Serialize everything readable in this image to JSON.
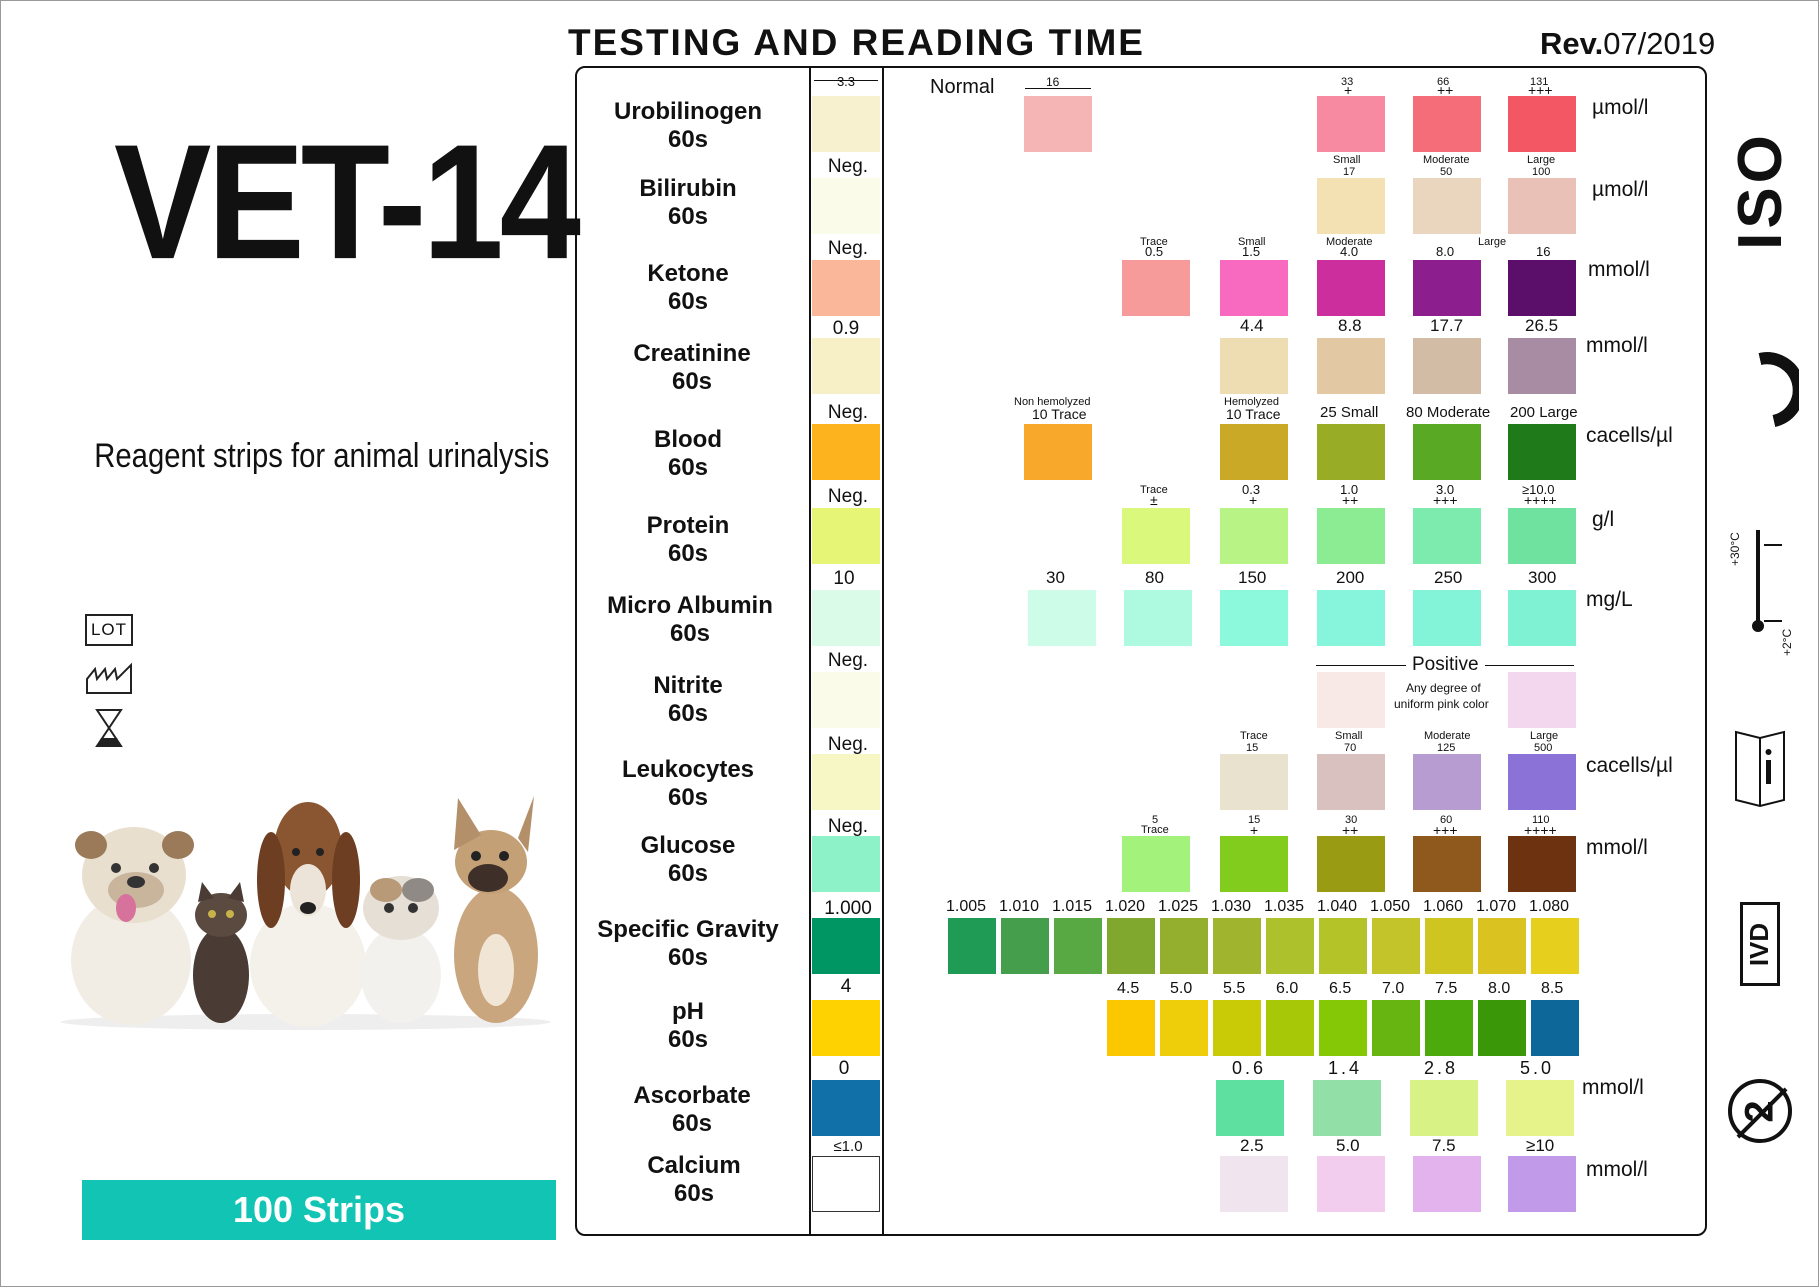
{
  "left_panel": {
    "product_name": "VET-14",
    "subtitle": "Reagent strips for animal urinalysis",
    "lot_label": "LOT",
    "banner": "100 Strips"
  },
  "header": {
    "title": "TESTING AND READING TIME",
    "rev_prefix": "Rev.",
    "rev_date": "07/2019"
  },
  "table": {
    "normal_label": "Normal",
    "rows": [
      {
        "name": "Urobilinogen",
        "time": "60s",
        "neg": "3.3",
        "unit": "µmol/l"
      },
      {
        "name": "Bilirubin",
        "time": "60s",
        "neg": "Neg.",
        "unit": "µmol/l"
      },
      {
        "name": "Ketone",
        "time": "60s",
        "neg": "Neg.",
        "unit": "mmol/l"
      },
      {
        "name": "Creatinine",
        "time": "60s",
        "neg": "0.9",
        "unit": "mmol/l"
      },
      {
        "name": "Blood",
        "time": "60s",
        "neg": "Neg.",
        "unit": "cacells/µl"
      },
      {
        "name": "Protein",
        "time": "60s",
        "neg": "Neg.",
        "unit": "g/l"
      },
      {
        "name": "Micro Albumin",
        "time": "60s",
        "neg": "10",
        "unit": "mg/L"
      },
      {
        "name": "Nitrite",
        "time": "60s",
        "neg": "Neg.",
        "unit": ""
      },
      {
        "name": "Leukocytes",
        "time": "60s",
        "neg": "Neg.",
        "unit": "cacells/µl"
      },
      {
        "name": "Glucose",
        "time": "60s",
        "neg": "Neg.",
        "unit": "mmol/l"
      },
      {
        "name": "Specific Gravity",
        "time": "60s",
        "neg": "1.000",
        "unit": ""
      },
      {
        "name": "pH",
        "time": "60s",
        "neg": "4",
        "unit": ""
      },
      {
        "name": "Ascorbate",
        "time": "60s",
        "neg": "0",
        "unit": "mmol/l"
      },
      {
        "name": "Calcium",
        "time": "60s",
        "neg": "≤1.0",
        "unit": "mmol/l"
      }
    ],
    "labels": {
      "uro_normal": "16",
      "uro_33": "33",
      "uro_66": "66",
      "uro_131": "131",
      "uro_p1": "+",
      "uro_p2": "++",
      "uro_p3": "+++",
      "bil_small": "Small",
      "bil_17": "17",
      "bil_moderate": "Moderate",
      "bil_50": "50",
      "bil_large": "Large",
      "bil_100": "100",
      "ket_trace": "Trace",
      "ket_05": "0.5",
      "ket_small": "Small",
      "ket_15": "1.5",
      "ket_moderate": "Moderate",
      "ket_40": "4.0",
      "ket_large": "Large",
      "ket_80": "8.0",
      "ket_16": "16",
      "cre_44": "4.4",
      "cre_88": "8.8",
      "cre_177": "17.7",
      "cre_265": "26.5",
      "blood_nonhemo": "Non hemolyzed",
      "blood_nonhemo_val": "10 Trace",
      "blood_hemo": "Hemolyzed",
      "blood_hemo_val": "10 Trace",
      "blood_25": "25 Small",
      "blood_80": "80 Moderate",
      "blood_200": "200 Large",
      "pro_trace": "Trace",
      "pro_pm": "±",
      "pro_03": "0.3",
      "pro_10": "1.0",
      "pro_30": "3.0",
      "pro_100": "≥10.0",
      "pro_p1": "+",
      "pro_p2": "++",
      "pro_p3": "+++",
      "pro_p4": "++++",
      "alb_30": "30",
      "alb_80": "80",
      "alb_150": "150",
      "alb_200": "200",
      "alb_250": "250",
      "alb_300": "300",
      "nit_positive": "Positive",
      "nit_desc1": "Any degree of",
      "nit_desc2": "uniform pink color",
      "leu_trace": "Trace",
      "leu_15": "15",
      "leu_small": "Small",
      "leu_70": "70",
      "leu_moderate": "Moderate",
      "leu_125": "125",
      "leu_large": "Large",
      "leu_500": "500",
      "glu_5": "5",
      "glu_trace": "Trace",
      "glu_15": "15",
      "glu_30": "30",
      "glu_60": "60",
      "glu_110": "110",
      "glu_p1": "+",
      "glu_p2": "++",
      "glu_p3": "+++",
      "glu_p4": "++++",
      "asc_06": "0.6",
      "asc_14": "1.4",
      "asc_28": "2.8",
      "asc_50": "5.0",
      "cal_25": "2.5",
      "cal_50": "5.0",
      "cal_75": "7.5",
      "cal_10": "≥10"
    },
    "sg_values": [
      "1.005",
      "1.010",
      "1.015",
      "1.020",
      "1.025",
      "1.030",
      "1.035",
      "1.040",
      "1.050",
      "1.060",
      "1.070",
      "1.080"
    ],
    "ph_values": [
      "4.5",
      "5.0",
      "5.5",
      "6.0",
      "6.5",
      "7.0",
      "7.5",
      "8.0",
      "8.5"
    ]
  },
  "right_symbols": {
    "iso": "ISO",
    "ce": "CE",
    "temp_high": "+30°C",
    "temp_low": "+2°C",
    "ivd": "IVD",
    "single_use": "2"
  },
  "colors": {
    "banner": "#12c4b4",
    "swatch_uro": [
      "#f7f1cf",
      "#f5b5b5",
      "#f78aa0",
      "#f66d7a",
      "#f35764"
    ],
    "swatch_bil": [
      "#fafbe8",
      "#f4e1b3",
      "#ead5bf",
      "#eac1b6"
    ],
    "swatch_ket": [
      "#fbb79a",
      "#f79a9a",
      "#f76ac0",
      "#cc2e9e",
      "#8c1e8e",
      "#5b0e6a"
    ],
    "swatch_cre": [
      "#f7efc6",
      "#eedcb2",
      "#e2c8a3",
      "#d2bca6",
      "#a78ca3"
    ],
    "swatch_blood": [
      "#fdb31d",
      "#f8a82a",
      "#c9a926",
      "#99ac26",
      "#5aa924",
      "#1f7a1a"
    ],
    "swatch_pro": [
      "#e7f577",
      "#d9f87c",
      "#b8f485",
      "#8bec94",
      "#7debae",
      "#6fe2a0"
    ],
    "swatch_alb": [
      "#dafbe8",
      "#cdfce8",
      "#aefae0",
      "#8cf8dc",
      "#86f5dc",
      "#84f4d9",
      "#7ff2d3"
    ],
    "swatch_nit": [
      "#fbfbe9",
      "#f8e9e6",
      "#f2d7ef"
    ],
    "swatch_leu": [
      "#f7f6c5",
      "#e9e2cf",
      "#d9c1c0",
      "#b69cd0",
      "#8a72d6"
    ],
    "swatch_glu": [
      "#8ef2c9",
      "#a2f27b",
      "#82cc1d",
      "#999b13",
      "#8f581c",
      "#6d3310"
    ],
    "swatch_sg": [
      "#009664",
      "#1f9b55",
      "#459e4c",
      "#58a844",
      "#80a82f",
      "#94ae2e",
      "#a0b52d",
      "#acc12c",
      "#b4c428",
      "#c2c42a",
      "#cfc520",
      "#dac321",
      "#e7cf1e"
    ],
    "swatch_ph": [
      "#fed200",
      "#fbc800",
      "#eecd0b",
      "#c8cb06",
      "#a7c807",
      "#84c806",
      "#67b510",
      "#4caa0c",
      "#3a9808",
      "#0d6799"
    ],
    "swatch_asc": [
      "#1270a9",
      "#5ee0a0",
      "#93dfa8",
      "#d9f285",
      "#e6f28a"
    ],
    "swatch_cal": [
      "#ffffff",
      "#f0e5ee",
      "#f2cdee",
      "#e3b3ee",
      "#c19ae9"
    ]
  }
}
